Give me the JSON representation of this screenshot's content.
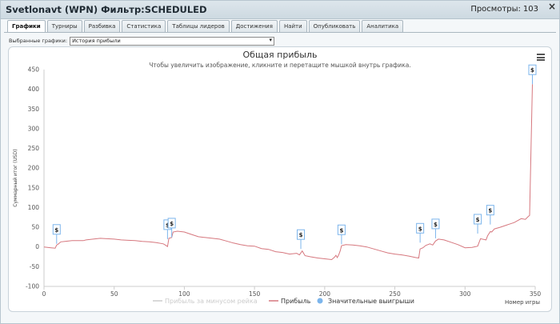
{
  "window": {
    "title": "Svetlonavt (WPN) Фильтр:SCHEDULED",
    "views_label": "Просмотры:",
    "views_count": "103",
    "close": "×"
  },
  "tabs": [
    {
      "label": "Графики",
      "active": true
    },
    {
      "label": "Турниры",
      "active": false
    },
    {
      "label": "Разбивка",
      "active": false
    },
    {
      "label": "Статистика",
      "active": false
    },
    {
      "label": "Таблицы лидеров",
      "active": false
    },
    {
      "label": "Достижения",
      "active": false
    },
    {
      "label": "Найти",
      "active": false
    },
    {
      "label": "Опубликовать",
      "active": false
    },
    {
      "label": "Аналитика",
      "active": false
    }
  ],
  "selector": {
    "label": "Выбранные графики:",
    "value": "История прибыли"
  },
  "chart_data": {
    "type": "line",
    "title": "Общая прибыль",
    "subtitle": "Чтобы увеличить изображение, кликните и перетащите мышкой внутрь графика.",
    "ylabel": "Суммарный итог (USD)",
    "xlabel": "Номер игры",
    "xlim": [
      0,
      350
    ],
    "ylim": [
      -100,
      450
    ],
    "x_ticks": [
      "0",
      "50",
      "100",
      "150",
      "200",
      "250",
      "300",
      "350"
    ],
    "y_ticks": [
      "-100",
      "-50",
      "0",
      "50",
      "100",
      "150",
      "200",
      "250",
      "300",
      "350",
      "400",
      "450"
    ],
    "series": [
      {
        "name": "Прибыль за минусом рейка",
        "color": "#dddddd",
        "visible": false
      },
      {
        "name": "Прибыль",
        "color": "#d6777e",
        "points": [
          [
            0,
            0
          ],
          [
            5,
            -2
          ],
          [
            8,
            -3
          ],
          [
            9,
            5
          ],
          [
            10,
            7
          ],
          [
            12,
            13
          ],
          [
            15,
            14
          ],
          [
            20,
            16
          ],
          [
            25,
            16
          ],
          [
            28,
            16
          ],
          [
            30,
            18
          ],
          [
            35,
            20
          ],
          [
            40,
            22
          ],
          [
            50,
            20
          ],
          [
            55,
            18
          ],
          [
            60,
            17
          ],
          [
            65,
            16
          ],
          [
            70,
            14
          ],
          [
            75,
            13
          ],
          [
            80,
            11
          ],
          [
            85,
            8
          ],
          [
            86,
            6
          ],
          [
            88,
            1
          ],
          [
            89,
            22
          ],
          [
            91,
            24
          ],
          [
            92,
            38
          ],
          [
            95,
            40
          ],
          [
            100,
            38
          ],
          [
            105,
            32
          ],
          [
            110,
            26
          ],
          [
            115,
            24
          ],
          [
            120,
            22
          ],
          [
            125,
            20
          ],
          [
            130,
            15
          ],
          [
            135,
            10
          ],
          [
            140,
            6
          ],
          [
            145,
            3
          ],
          [
            150,
            2
          ],
          [
            155,
            -4
          ],
          [
            160,
            -6
          ],
          [
            165,
            -12
          ],
          [
            170,
            -14
          ],
          [
            175,
            -18
          ],
          [
            180,
            -16
          ],
          [
            182,
            -20
          ],
          [
            184,
            -10
          ],
          [
            186,
            -22
          ],
          [
            190,
            -25
          ],
          [
            195,
            -28
          ],
          [
            200,
            -30
          ],
          [
            205,
            -32
          ],
          [
            207,
            -26
          ],
          [
            208,
            -21
          ],
          [
            209,
            -27
          ],
          [
            210,
            -20
          ],
          [
            211,
            -10
          ],
          [
            212,
            3
          ],
          [
            215,
            6
          ],
          [
            220,
            5
          ],
          [
            225,
            3
          ],
          [
            230,
            0
          ],
          [
            235,
            -5
          ],
          [
            240,
            -10
          ],
          [
            245,
            -15
          ],
          [
            250,
            -18
          ],
          [
            255,
            -20
          ],
          [
            260,
            -23
          ],
          [
            265,
            -27
          ],
          [
            267,
            -28
          ],
          [
            268,
            -5
          ],
          [
            270,
            -2
          ],
          [
            272,
            4
          ],
          [
            275,
            8
          ],
          [
            277,
            5
          ],
          [
            279,
            15
          ],
          [
            281,
            20
          ],
          [
            285,
            18
          ],
          [
            290,
            12
          ],
          [
            295,
            6
          ],
          [
            300,
            -2
          ],
          [
            305,
            -1
          ],
          [
            309,
            2
          ],
          [
            311,
            21
          ],
          [
            315,
            18
          ],
          [
            316,
            28
          ],
          [
            318,
            39
          ],
          [
            319,
            38
          ],
          [
            321,
            46
          ],
          [
            325,
            50
          ],
          [
            330,
            56
          ],
          [
            335,
            62
          ],
          [
            340,
            72
          ],
          [
            343,
            70
          ],
          [
            345,
            77
          ],
          [
            346,
            80
          ],
          [
            348,
            413
          ]
        ]
      },
      {
        "name": "Значительные выигрыши",
        "color": "#7cb5ec",
        "points": [
          [
            9,
            8
          ],
          [
            88,
            20
          ],
          [
            91,
            24
          ],
          [
            183,
            -5
          ],
          [
            212,
            7
          ],
          [
            268,
            11
          ],
          [
            279,
            22
          ],
          [
            309,
            34
          ],
          [
            318,
            57
          ],
          [
            348,
            413
          ]
        ]
      }
    ],
    "flag_symbol": "$",
    "legend_position": "bottom"
  }
}
